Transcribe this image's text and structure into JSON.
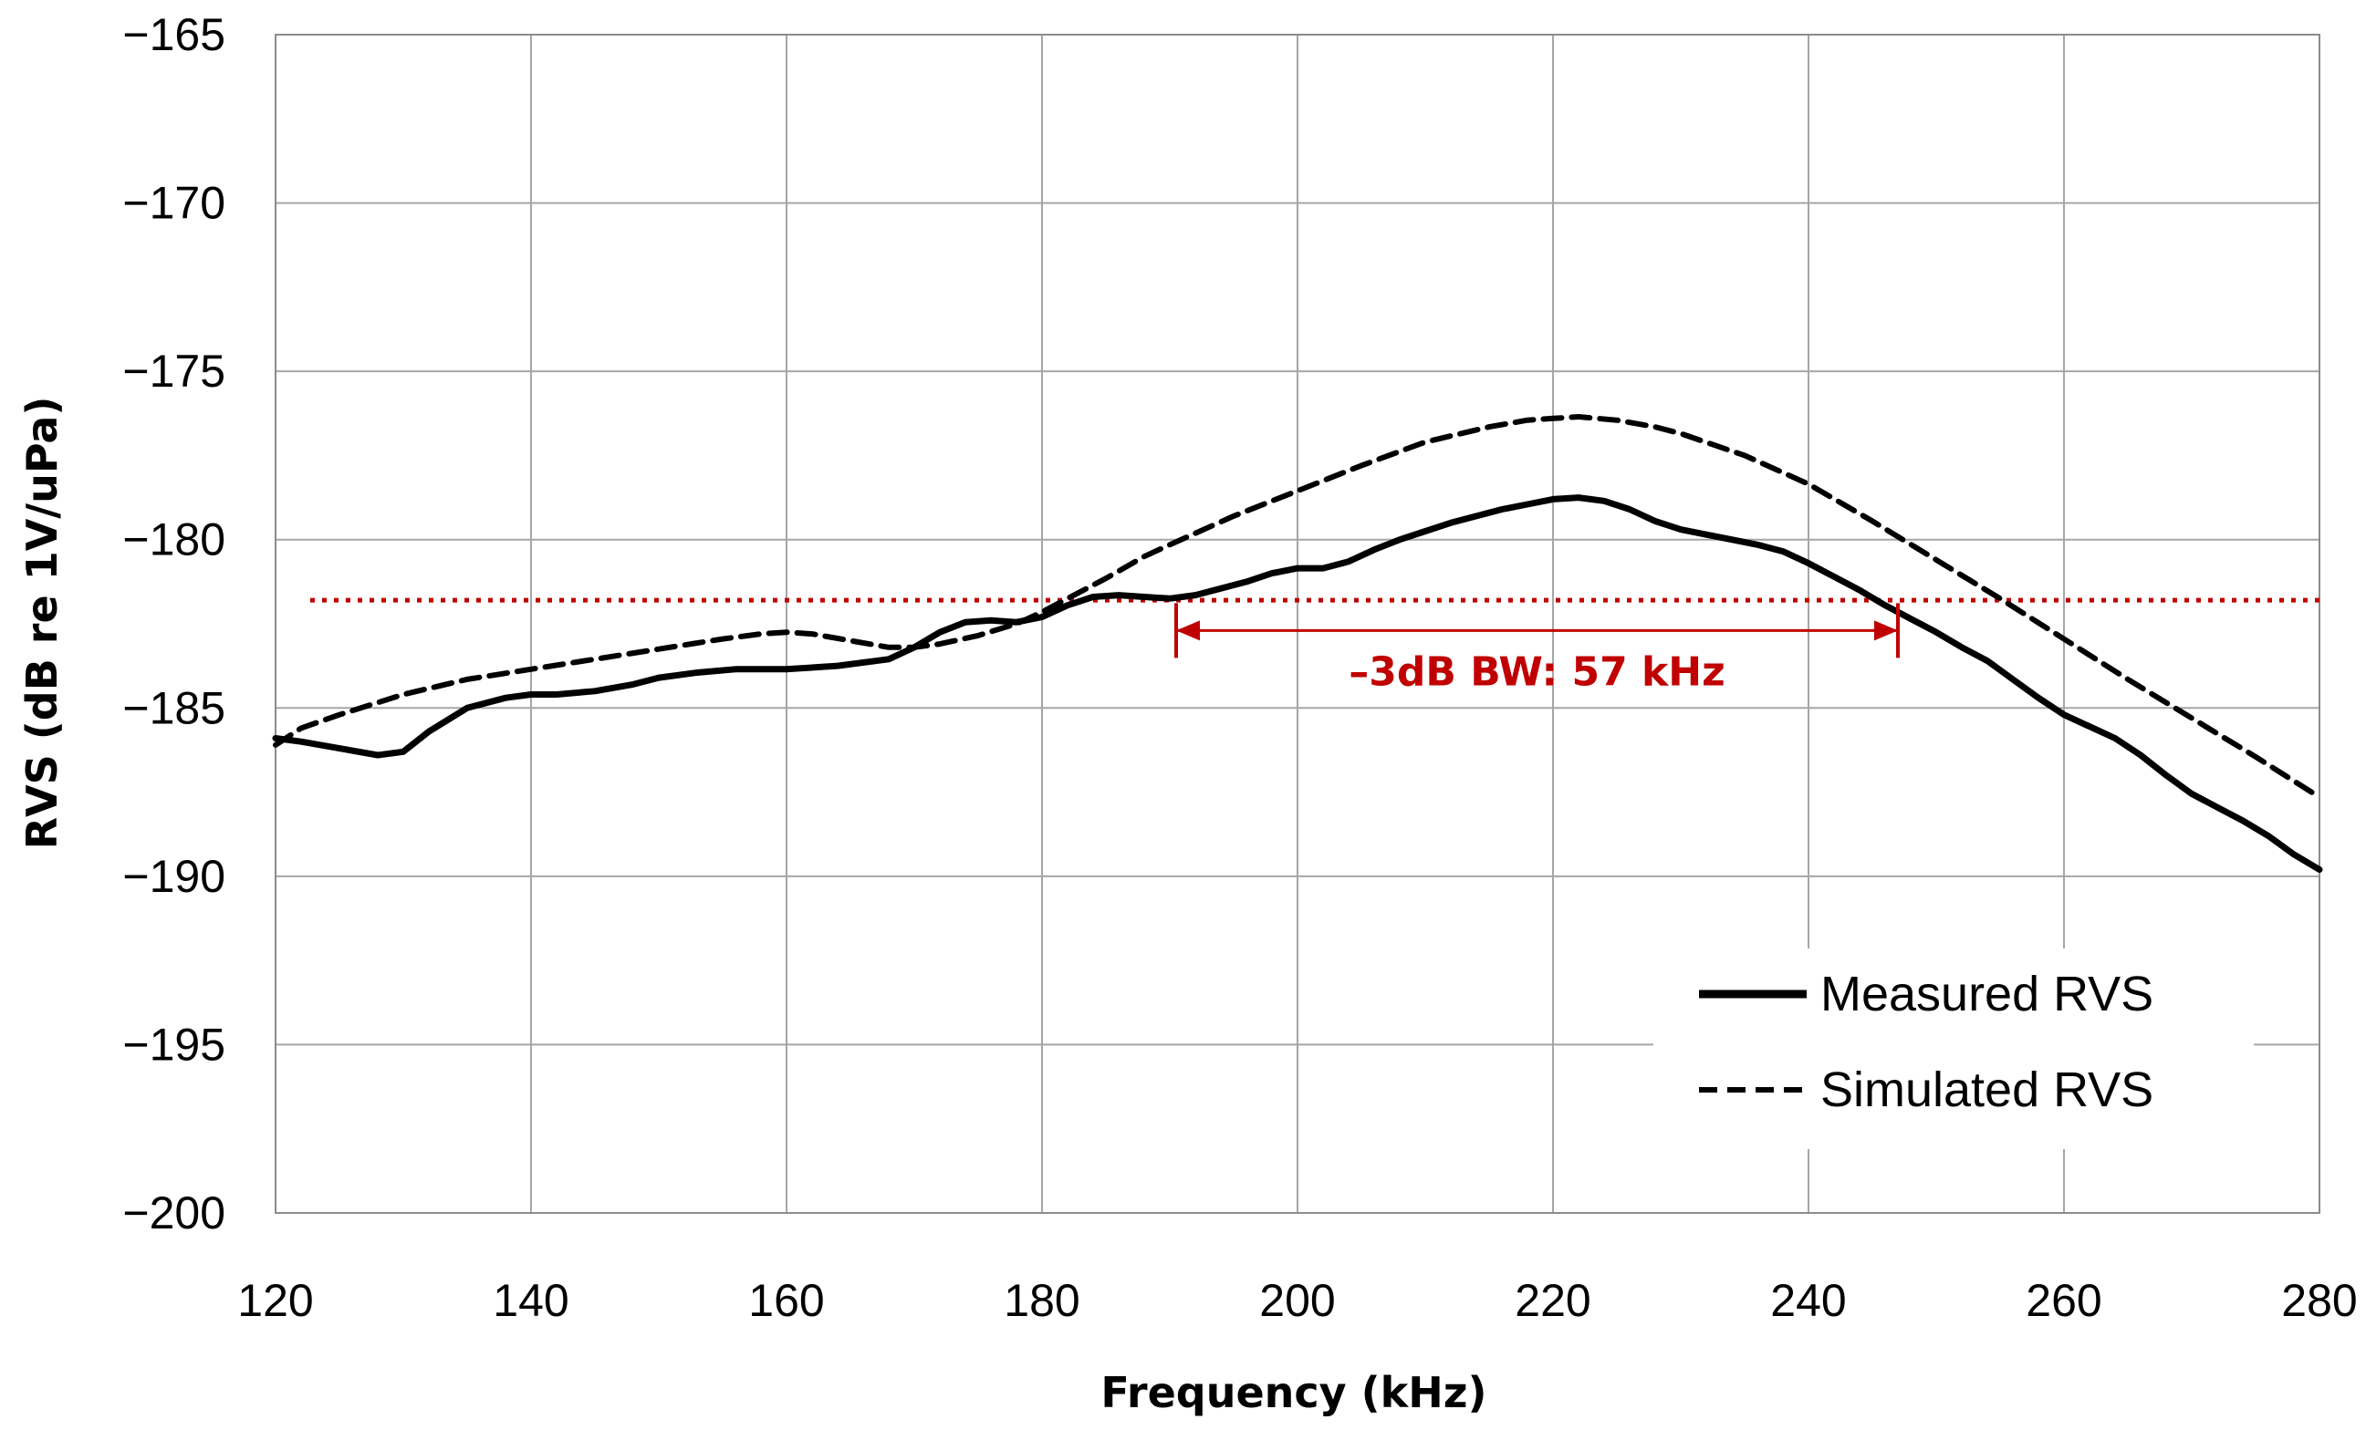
{
  "chart_data": {
    "type": "line",
    "title": "",
    "xlabel": "Frequency (kHz)",
    "ylabel": "RVS (dB re 1V/uPa)",
    "xlim": [
      120,
      280
    ],
    "ylim": [
      -200,
      -165
    ],
    "xticks": [
      120,
      140,
      160,
      180,
      200,
      220,
      240,
      260,
      280
    ],
    "yticks": [
      -165,
      -170,
      -175,
      -180,
      -185,
      -190,
      -195,
      -200
    ],
    "ytick_labels": [
      "−165",
      "−170",
      "−175",
      "−180",
      "−185",
      "−190",
      "−195",
      "−200"
    ],
    "grid": true,
    "legend_position": "bottom-right",
    "series": [
      {
        "name": "Measured RVS",
        "style": "solid",
        "color": "#000000",
        "x": [
          120,
          122,
          125,
          128,
          130,
          132,
          135,
          138,
          140,
          142,
          145,
          148,
          150,
          153,
          156,
          160,
          164,
          168,
          170,
          172,
          174,
          176,
          178,
          180,
          182,
          184,
          186,
          188,
          190,
          192,
          194,
          196,
          198,
          200,
          202,
          204,
          206,
          208,
          210,
          212,
          214,
          216,
          218,
          220,
          222,
          224,
          226,
          228,
          230,
          232,
          234,
          236,
          238,
          240,
          242,
          244,
          246,
          248,
          250,
          252,
          254,
          256,
          258,
          260,
          262,
          264,
          266,
          268,
          270,
          272,
          274,
          276,
          278,
          280
        ],
        "values": [
          -185.9,
          -186.0,
          -186.2,
          -186.4,
          -186.3,
          -185.7,
          -185.0,
          -184.7,
          -184.6,
          -184.6,
          -184.5,
          -184.3,
          -184.1,
          -183.95,
          -183.85,
          -183.85,
          -183.75,
          -183.55,
          -183.2,
          -182.75,
          -182.45,
          -182.4,
          -182.45,
          -182.3,
          -181.95,
          -181.7,
          -181.65,
          -181.7,
          -181.75,
          -181.65,
          -181.45,
          -181.25,
          -181.0,
          -180.85,
          -180.85,
          -180.65,
          -180.3,
          -180.0,
          -179.75,
          -179.5,
          -179.3,
          -179.1,
          -178.95,
          -178.8,
          -178.75,
          -178.85,
          -179.1,
          -179.45,
          -179.7,
          -179.85,
          -180.0,
          -180.15,
          -180.35,
          -180.7,
          -181.1,
          -181.5,
          -181.95,
          -182.35,
          -182.75,
          -183.2,
          -183.6,
          -184.15,
          -184.7,
          -185.2,
          -185.55,
          -185.9,
          -186.4,
          -187.0,
          -187.55,
          -187.95,
          -188.35,
          -188.8,
          -189.35,
          -189.8
        ]
      },
      {
        "name": "Simulated RVS",
        "style": "dashed",
        "color": "#000000",
        "x": [
          120,
          122,
          125,
          130,
          135,
          140,
          145,
          150,
          155,
          158,
          160,
          162,
          165,
          168,
          170,
          172,
          175,
          178,
          180,
          182,
          185,
          188,
          190,
          195,
          200,
          205,
          210,
          215,
          218,
          220,
          222,
          225,
          228,
          230,
          235,
          240,
          245,
          250,
          255,
          260,
          265,
          270,
          275,
          280
        ],
        "values": [
          -186.1,
          -185.6,
          -185.2,
          -184.6,
          -184.15,
          -183.85,
          -183.55,
          -183.25,
          -182.95,
          -182.8,
          -182.75,
          -182.8,
          -183.0,
          -183.2,
          -183.2,
          -183.1,
          -182.85,
          -182.5,
          -182.15,
          -181.75,
          -181.15,
          -180.5,
          -180.15,
          -179.3,
          -178.55,
          -177.8,
          -177.1,
          -176.65,
          -176.45,
          -176.4,
          -176.35,
          -176.45,
          -176.65,
          -176.85,
          -177.5,
          -178.35,
          -179.45,
          -180.6,
          -181.75,
          -182.95,
          -184.15,
          -185.3,
          -186.45,
          -187.65
        ]
      }
    ],
    "reference_line": {
      "y": -181.8,
      "style": "dotted",
      "color": "#c00000"
    },
    "bandwidth_marker": {
      "x_start": 190.5,
      "x_end": 247.0,
      "y": -182.7,
      "label": "–3dB BW: 57 kHz",
      "color": "#c00000"
    }
  }
}
